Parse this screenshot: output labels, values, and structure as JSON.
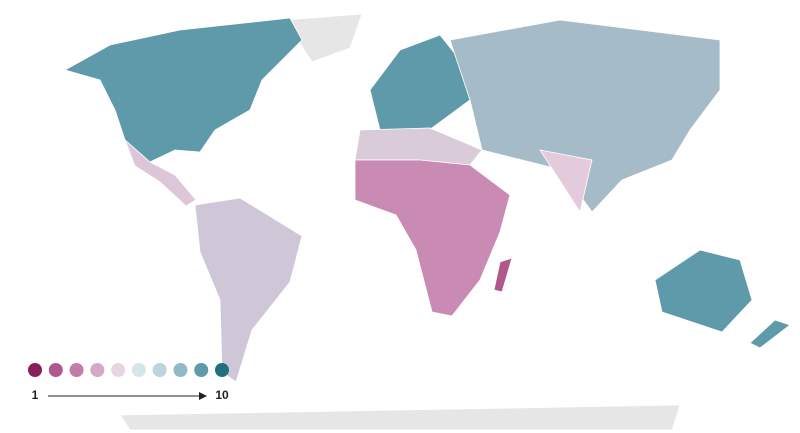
{
  "chart_data": {
    "type": "map",
    "scale": {
      "min": 1,
      "max": 10,
      "colors": [
        "#8b1f5a",
        "#b0578b",
        "#c27ca6",
        "#d3a9c5",
        "#e8d5e2",
        "#d6e4ec",
        "#bcd4de",
        "#93b9c6",
        "#5e9aa9",
        "#1f6f7e"
      ]
    }
  }
}
